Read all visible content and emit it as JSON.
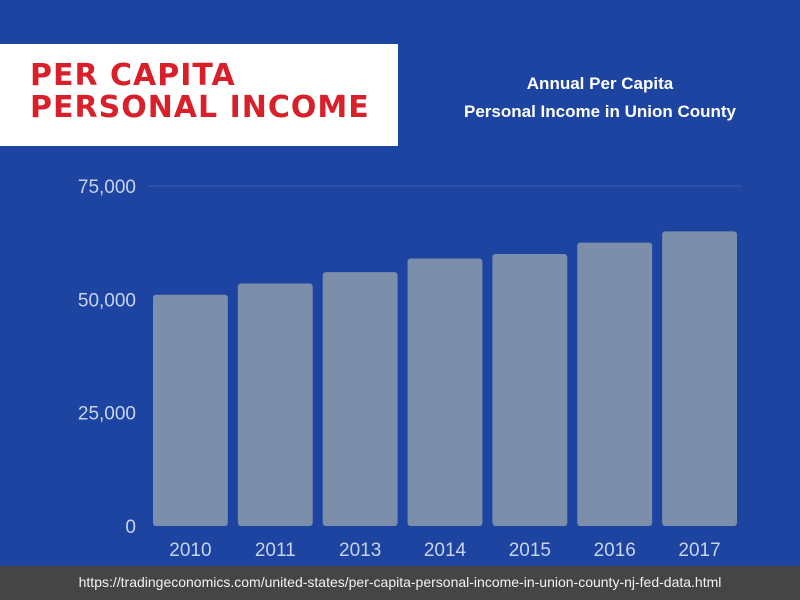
{
  "header": {
    "title_line1": "PER CAPITA",
    "title_line2": "PERSONAL INCOME"
  },
  "chart_data": {
    "type": "bar",
    "title_line1": "Annual Per Capita",
    "title_line2": "Personal Income in Union County",
    "categories": [
      "2010",
      "2011",
      "2013",
      "2014",
      "2015",
      "2016",
      "2017"
    ],
    "values": [
      51000,
      53500,
      56000,
      59000,
      60000,
      62500,
      65000
    ],
    "ylim": [
      0,
      75000
    ],
    "yticks": [
      0,
      25000,
      50000,
      75000
    ],
    "ytick_labels": [
      "0",
      "25,000",
      "50,000",
      "75,000"
    ],
    "grid": "top line only",
    "colors": {
      "background": "#1c44a0",
      "bar": "#7d8eab",
      "grid": "#3a5db5",
      "tick_text": "#c9d3ec"
    }
  },
  "footer": {
    "source": "https://tradingeconomics.com/united-states/per-capita-personal-income-in-union-county-nj-fed-data.html"
  }
}
